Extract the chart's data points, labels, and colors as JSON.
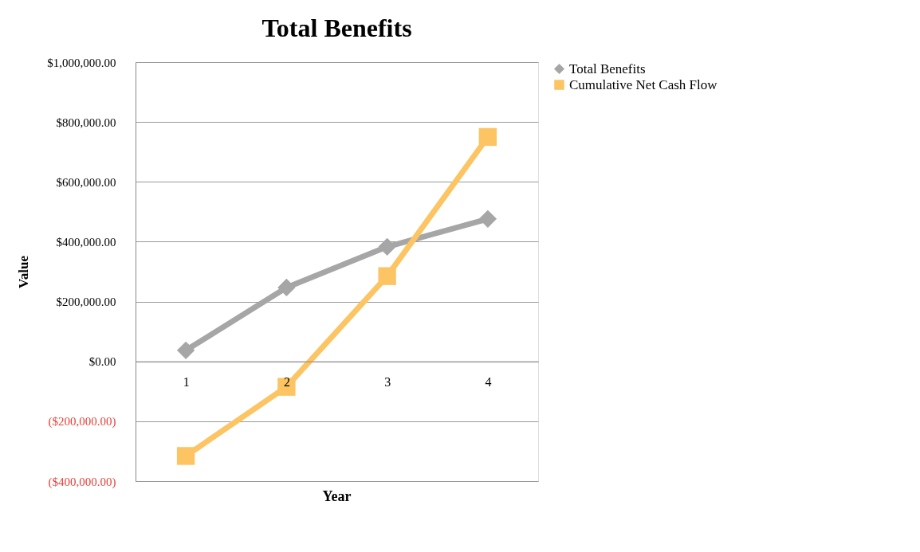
{
  "chart_data": {
    "type": "line",
    "title": "Total Benefits",
    "xlabel": "Year",
    "ylabel": "Value",
    "categories": [
      "1",
      "2",
      "3",
      "4"
    ],
    "series": [
      {
        "name": "Total Benefits",
        "color": "#a6a6a6",
        "marker": "diamond",
        "values": [
          37000,
          247000,
          383000,
          476000
        ]
      },
      {
        "name": "Cumulative Net Cash Flow",
        "color": "#fcc462",
        "marker": "square",
        "values": [
          -316000,
          -85000,
          285000,
          750000
        ]
      }
    ],
    "ylim": [
      -400000,
      1000000
    ],
    "yticks": [
      {
        "value": -400000,
        "label": "($400,000.00)"
      },
      {
        "value": -200000,
        "label": "($200,000.00)"
      },
      {
        "value": 0,
        "label": "$0.00"
      },
      {
        "value": 200000,
        "label": "$200,000.00"
      },
      {
        "value": 400000,
        "label": "$400,000.00"
      },
      {
        "value": 600000,
        "label": "$600,000.00"
      },
      {
        "value": 800000,
        "label": "$800,000.00"
      },
      {
        "value": 1000000,
        "label": "$1,000,000.00"
      }
    ],
    "grid": "y",
    "legend": "right"
  }
}
